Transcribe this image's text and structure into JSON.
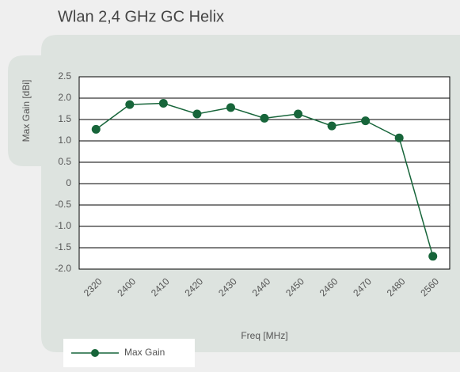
{
  "chart_data": {
    "type": "line",
    "title": "Wlan 2,4 GHz GC Helix",
    "x_label": "Freq [MHz]",
    "y_label": "Max Gain  [dBi]",
    "categories": [
      "2320",
      "2400",
      "2410",
      "2420",
      "2430",
      "2440",
      "2450",
      "2460",
      "2470",
      "2480",
      "2560"
    ],
    "series": [
      {
        "name": "Max Gain",
        "color": "#17653a",
        "values": [
          1.27,
          1.85,
          1.88,
          1.63,
          1.78,
          1.53,
          1.63,
          1.35,
          1.47,
          1.07,
          -1.7
        ]
      }
    ],
    "ylim": [
      -2,
      2.5
    ],
    "yticks": [
      {
        "value": -2,
        "label": "-2.0"
      },
      -1.5,
      {
        "value": -1,
        "label": "-1.0"
      },
      -0.5,
      0,
      0.5,
      {
        "value": 1,
        "label": "1.0"
      },
      1.5,
      {
        "value": 2,
        "label": "2.0"
      },
      2.5
    ],
    "grid": true,
    "legend": "bottom-left"
  }
}
